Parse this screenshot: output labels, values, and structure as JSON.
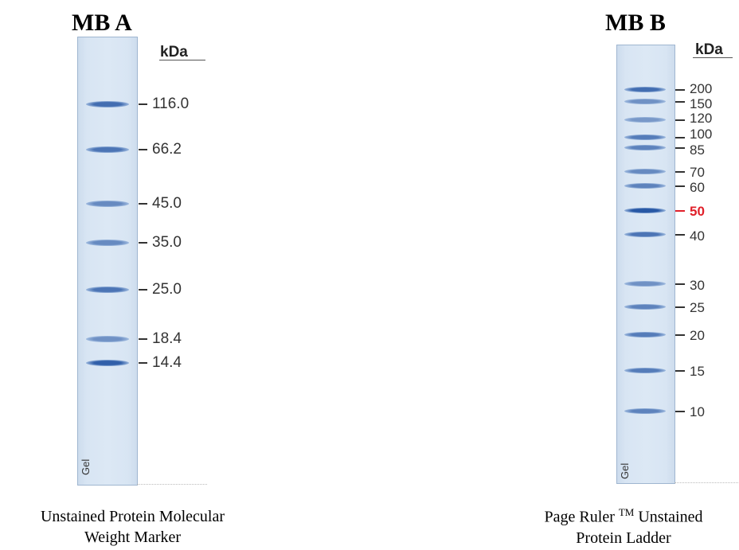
{
  "panel_a": {
    "title": "MB A",
    "unit": "kDa",
    "gel_label": "Gel",
    "bands": [
      {
        "label": "116.0",
        "intensity": 0.85
      },
      {
        "label": "66.2",
        "intensity": 0.8
      },
      {
        "label": "45.0",
        "intensity": 0.65
      },
      {
        "label": "35.0",
        "intensity": 0.65
      },
      {
        "label": "25.0",
        "intensity": 0.8
      },
      {
        "label": "18.4",
        "intensity": 0.6
      },
      {
        "label": "14.4",
        "intensity": 0.95
      }
    ],
    "caption_line1": "Unstained Protein Molecular",
    "caption_line2": "Weight Marker"
  },
  "panel_b": {
    "title": "MB B",
    "unit": "kDa",
    "gel_label": "Gel",
    "bands": [
      {
        "label": "200",
        "intensity": 0.85,
        "highlight": false
      },
      {
        "label": "150",
        "intensity": 0.6,
        "highlight": false
      },
      {
        "label": "120",
        "intensity": 0.55,
        "highlight": false
      },
      {
        "label": "100",
        "intensity": 0.75,
        "highlight": false
      },
      {
        "label": "85",
        "intensity": 0.7,
        "highlight": false
      },
      {
        "label": "70",
        "intensity": 0.65,
        "highlight": false
      },
      {
        "label": "60",
        "intensity": 0.7,
        "highlight": false
      },
      {
        "label": "50",
        "intensity": 1.0,
        "highlight": true
      },
      {
        "label": "40",
        "intensity": 0.8,
        "highlight": false
      },
      {
        "label": "30",
        "intensity": 0.6,
        "highlight": false
      },
      {
        "label": "25",
        "intensity": 0.7,
        "highlight": false
      },
      {
        "label": "20",
        "intensity": 0.75,
        "highlight": false
      },
      {
        "label": "15",
        "intensity": 0.75,
        "highlight": false
      },
      {
        "label": "10",
        "intensity": 0.7,
        "highlight": false
      }
    ],
    "caption_prefix": "Page Ruler ",
    "caption_tm": "TM",
    "caption_suffix": " Unstained",
    "caption_line2": "Protein Ladder"
  },
  "colors": {
    "band": "#2f5fa8",
    "highlight_label": "#e0202a",
    "gel_background": "#dce8f5"
  }
}
